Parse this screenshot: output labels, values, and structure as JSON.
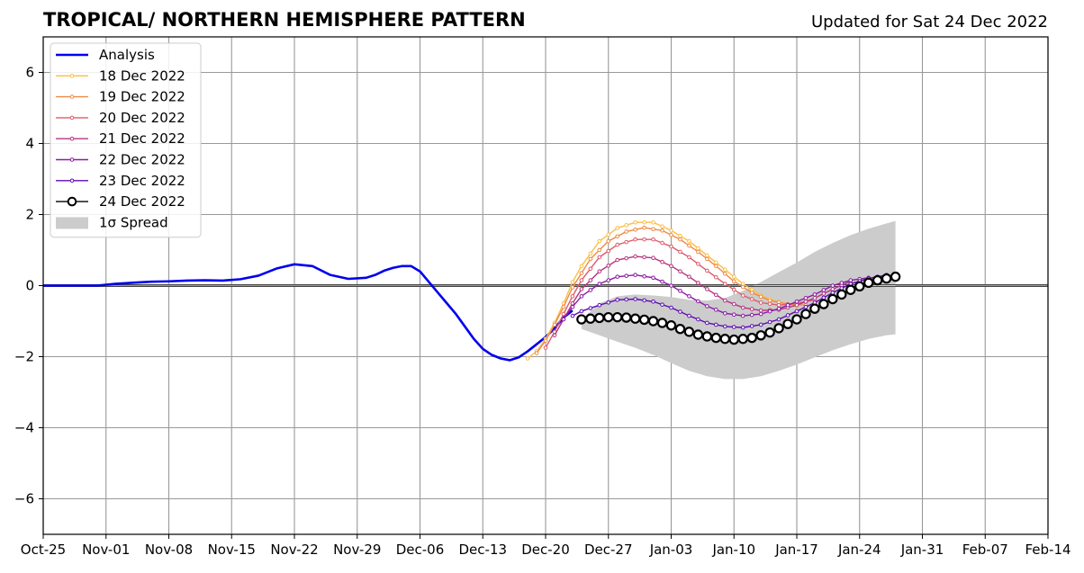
{
  "chart_data": {
    "type": "line",
    "title": "TROPICAL/ NORTHERN HEMISPHERE PATTERN",
    "subtitle": "Updated for Sat 24 Dec 2022",
    "xlabel": "",
    "ylabel": "",
    "x_range": [
      "2022-10-25",
      "2023-02-14"
    ],
    "ylim": [
      -7,
      7
    ],
    "grid": true,
    "zero_line": true,
    "legend_placement": "top-left",
    "x_ticks": [
      {
        "date": "2022-10-25",
        "label": "Oct-25"
      },
      {
        "date": "2022-11-01",
        "label": "Nov-01"
      },
      {
        "date": "2022-11-08",
        "label": "Nov-08"
      },
      {
        "date": "2022-11-15",
        "label": "Nov-15"
      },
      {
        "date": "2022-11-22",
        "label": "Nov-22"
      },
      {
        "date": "2022-11-29",
        "label": "Nov-29"
      },
      {
        "date": "2022-12-06",
        "label": "Dec-06"
      },
      {
        "date": "2022-12-13",
        "label": "Dec-13"
      },
      {
        "date": "2022-12-20",
        "label": "Dec-20"
      },
      {
        "date": "2022-12-27",
        "label": "Dec-27"
      },
      {
        "date": "2023-01-03",
        "label": "Jan-03"
      },
      {
        "date": "2023-01-10",
        "label": "Jan-10"
      },
      {
        "date": "2023-01-17",
        "label": "Jan-17"
      },
      {
        "date": "2023-01-24",
        "label": "Jan-24"
      },
      {
        "date": "2023-01-31",
        "label": "Jan-31"
      },
      {
        "date": "2023-02-07",
        "label": "Feb-07"
      },
      {
        "date": "2023-02-14",
        "label": "Feb-14"
      }
    ],
    "y_ticks": [
      {
        "value": -6,
        "label": "−6"
      },
      {
        "value": -4,
        "label": "−4"
      },
      {
        "value": -2,
        "label": "−2"
      },
      {
        "value": 0,
        "label": "0"
      },
      {
        "value": 2,
        "label": "2"
      },
      {
        "value": 4,
        "label": "4"
      },
      {
        "value": 6,
        "label": "6"
      }
    ],
    "analysis": {
      "name": "Analysis",
      "color": "#0000ee",
      "points": [
        [
          "2022-10-25",
          0.0
        ],
        [
          "2022-10-27",
          0.0
        ],
        [
          "2022-10-29",
          0.0
        ],
        [
          "2022-10-31",
          0.0
        ],
        [
          "2022-11-02",
          0.05
        ],
        [
          "2022-11-04",
          0.08
        ],
        [
          "2022-11-06",
          0.11
        ],
        [
          "2022-11-08",
          0.12
        ],
        [
          "2022-11-10",
          0.14
        ],
        [
          "2022-11-12",
          0.15
        ],
        [
          "2022-11-14",
          0.14
        ],
        [
          "2022-11-16",
          0.18
        ],
        [
          "2022-11-18",
          0.28
        ],
        [
          "2022-11-20",
          0.48
        ],
        [
          "2022-11-22",
          0.6
        ],
        [
          "2022-11-24",
          0.55
        ],
        [
          "2022-11-26",
          0.3
        ],
        [
          "2022-11-28",
          0.19
        ],
        [
          "2022-11-30",
          0.22
        ],
        [
          "2022-12-01",
          0.3
        ],
        [
          "2022-12-02",
          0.42
        ],
        [
          "2022-12-03",
          0.5
        ],
        [
          "2022-12-04",
          0.55
        ],
        [
          "2022-12-05",
          0.55
        ],
        [
          "2022-12-06",
          0.4
        ],
        [
          "2022-12-07",
          0.1
        ],
        [
          "2022-12-08",
          -0.2
        ],
        [
          "2022-12-09",
          -0.5
        ],
        [
          "2022-12-10",
          -0.8
        ],
        [
          "2022-12-11",
          -1.15
        ],
        [
          "2022-12-12",
          -1.5
        ],
        [
          "2022-12-13",
          -1.78
        ],
        [
          "2022-12-14",
          -1.95
        ],
        [
          "2022-12-15",
          -2.05
        ],
        [
          "2022-12-16",
          -2.1
        ],
        [
          "2022-12-17",
          -2.02
        ],
        [
          "2022-12-18",
          -1.85
        ],
        [
          "2022-12-19",
          -1.65
        ],
        [
          "2022-12-20",
          -1.45
        ],
        [
          "2022-12-21",
          -1.2
        ],
        [
          "2022-12-22",
          -0.9
        ],
        [
          "2022-12-23",
          -0.7
        ]
      ]
    },
    "series": [
      {
        "name": "18 Dec 2022",
        "color": "#fbbf45",
        "start": "2022-12-18",
        "points": [
          [
            "2022-12-18",
            -2.05
          ],
          [
            "2022-12-19",
            -1.85
          ],
          [
            "2022-12-20",
            -1.5
          ],
          [
            "2022-12-21",
            -1.05
          ],
          [
            "2022-12-22",
            -0.5
          ],
          [
            "2022-12-23",
            0.1
          ],
          [
            "2022-12-24",
            0.55
          ],
          [
            "2022-12-26",
            1.25
          ],
          [
            "2022-12-28",
            1.62
          ],
          [
            "2022-12-30",
            1.78
          ],
          [
            "2023-01-01",
            1.78
          ],
          [
            "2023-01-03",
            1.55
          ],
          [
            "2023-01-05",
            1.25
          ],
          [
            "2023-01-07",
            0.85
          ],
          [
            "2023-01-09",
            0.45
          ],
          [
            "2023-01-11",
            0.05
          ],
          [
            "2023-01-13",
            -0.28
          ],
          [
            "2023-01-15",
            -0.47
          ],
          [
            "2023-01-17",
            -0.58
          ]
        ]
      },
      {
        "name": "19 Dec 2022",
        "color": "#ef8a47",
        "start": "2022-12-19",
        "points": [
          [
            "2022-12-19",
            -1.9
          ],
          [
            "2022-12-20",
            -1.55
          ],
          [
            "2022-12-21",
            -1.1
          ],
          [
            "2022-12-22",
            -0.6
          ],
          [
            "2022-12-23",
            -0.05
          ],
          [
            "2022-12-25",
            0.75
          ],
          [
            "2022-12-27",
            1.25
          ],
          [
            "2022-12-29",
            1.52
          ],
          [
            "2022-12-31",
            1.63
          ],
          [
            "2023-01-02",
            1.55
          ],
          [
            "2023-01-04",
            1.3
          ],
          [
            "2023-01-06",
            0.95
          ],
          [
            "2023-01-08",
            0.55
          ],
          [
            "2023-01-10",
            0.12
          ],
          [
            "2023-01-12",
            -0.2
          ],
          [
            "2023-01-14",
            -0.42
          ],
          [
            "2023-01-16",
            -0.52
          ],
          [
            "2023-01-18",
            -0.55
          ]
        ]
      },
      {
        "name": "20 Dec 2022",
        "color": "#dd5b6b",
        "start": "2022-12-20",
        "points": [
          [
            "2022-12-20",
            -1.75
          ],
          [
            "2022-12-21",
            -1.3
          ],
          [
            "2022-12-22",
            -0.8
          ],
          [
            "2022-12-23",
            -0.3
          ],
          [
            "2022-12-24",
            0.15
          ],
          [
            "2022-12-26",
            0.8
          ],
          [
            "2022-12-28",
            1.15
          ],
          [
            "2022-12-30",
            1.3
          ],
          [
            "2023-01-01",
            1.3
          ],
          [
            "2023-01-03",
            1.1
          ],
          [
            "2023-01-05",
            0.8
          ],
          [
            "2023-01-07",
            0.42
          ],
          [
            "2023-01-09",
            0.05
          ],
          [
            "2023-01-11",
            -0.28
          ],
          [
            "2023-01-13",
            -0.48
          ],
          [
            "2023-01-15",
            -0.55
          ],
          [
            "2023-01-17",
            -0.5
          ],
          [
            "2023-01-19",
            -0.4
          ]
        ]
      },
      {
        "name": "21 Dec 2022",
        "color": "#b5357f",
        "start": "2022-12-21",
        "points": [
          [
            "2022-12-21",
            -1.4
          ],
          [
            "2022-12-22",
            -0.95
          ],
          [
            "2022-12-23",
            -0.5
          ],
          [
            "2022-12-24",
            -0.1
          ],
          [
            "2022-12-26",
            0.4
          ],
          [
            "2022-12-28",
            0.72
          ],
          [
            "2022-12-30",
            0.82
          ],
          [
            "2023-01-01",
            0.78
          ],
          [
            "2023-01-03",
            0.55
          ],
          [
            "2023-01-05",
            0.25
          ],
          [
            "2023-01-07",
            -0.1
          ],
          [
            "2023-01-09",
            -0.42
          ],
          [
            "2023-01-11",
            -0.62
          ],
          [
            "2023-01-13",
            -0.7
          ],
          [
            "2023-01-15",
            -0.68
          ],
          [
            "2023-01-17",
            -0.55
          ],
          [
            "2023-01-19",
            -0.35
          ],
          [
            "2023-01-21",
            -0.1
          ],
          [
            "2023-01-23",
            0.12
          ]
        ]
      },
      {
        "name": "22 Dec 2022",
        "color": "#8a1aa3",
        "start": "2022-12-22",
        "points": [
          [
            "2022-12-22",
            -0.95
          ],
          [
            "2022-12-23",
            -0.6
          ],
          [
            "2022-12-24",
            -0.3
          ],
          [
            "2022-12-26",
            0.05
          ],
          [
            "2022-12-28",
            0.25
          ],
          [
            "2022-12-30",
            0.3
          ],
          [
            "2023-01-01",
            0.22
          ],
          [
            "2023-01-03",
            0.0
          ],
          [
            "2023-01-05",
            -0.3
          ],
          [
            "2023-01-07",
            -0.58
          ],
          [
            "2023-01-09",
            -0.78
          ],
          [
            "2023-01-11",
            -0.85
          ],
          [
            "2023-01-13",
            -0.8
          ],
          [
            "2023-01-15",
            -0.65
          ],
          [
            "2023-01-17",
            -0.45
          ],
          [
            "2023-01-19",
            -0.25
          ],
          [
            "2023-01-21",
            0.0
          ],
          [
            "2023-01-23",
            0.15
          ],
          [
            "2023-01-25",
            0.22
          ]
        ]
      },
      {
        "name": "23 Dec 2022",
        "color": "#5c0bb0",
        "start": "2022-12-23",
        "points": [
          [
            "2022-12-23",
            -0.85
          ],
          [
            "2022-12-24",
            -0.72
          ],
          [
            "2022-12-26",
            -0.55
          ],
          [
            "2022-12-28",
            -0.4
          ],
          [
            "2022-12-30",
            -0.38
          ],
          [
            "2023-01-01",
            -0.45
          ],
          [
            "2023-01-03",
            -0.62
          ],
          [
            "2023-01-05",
            -0.85
          ],
          [
            "2023-01-07",
            -1.05
          ],
          [
            "2023-01-09",
            -1.15
          ],
          [
            "2023-01-11",
            -1.18
          ],
          [
            "2023-01-13",
            -1.1
          ],
          [
            "2023-01-15",
            -0.95
          ],
          [
            "2023-01-17",
            -0.72
          ],
          [
            "2023-01-19",
            -0.48
          ],
          [
            "2023-01-21",
            -0.2
          ],
          [
            "2023-01-23",
            0.05
          ],
          [
            "2023-01-25",
            0.2
          ],
          [
            "2023-01-27",
            0.3
          ]
        ]
      },
      {
        "name": "24 Dec 2022",
        "color": "#000000",
        "start": "2022-12-24",
        "points": [
          [
            "2022-12-24",
            -0.95
          ],
          [
            "2022-12-25",
            -0.93
          ],
          [
            "2022-12-26",
            -0.91
          ],
          [
            "2022-12-27",
            -0.89
          ],
          [
            "2022-12-28",
            -0.89
          ],
          [
            "2022-12-29",
            -0.9
          ],
          [
            "2022-12-30",
            -0.93
          ],
          [
            "2022-12-31",
            -0.96
          ],
          [
            "2023-01-01",
            -1.0
          ],
          [
            "2023-01-02",
            -1.05
          ],
          [
            "2023-01-03",
            -1.12
          ],
          [
            "2023-01-04",
            -1.22
          ],
          [
            "2023-01-05",
            -1.3
          ],
          [
            "2023-01-06",
            -1.38
          ],
          [
            "2023-01-07",
            -1.43
          ],
          [
            "2023-01-08",
            -1.47
          ],
          [
            "2023-01-09",
            -1.5
          ],
          [
            "2023-01-10",
            -1.52
          ],
          [
            "2023-01-11",
            -1.5
          ],
          [
            "2023-01-12",
            -1.47
          ],
          [
            "2023-01-13",
            -1.4
          ],
          [
            "2023-01-14",
            -1.32
          ],
          [
            "2023-01-15",
            -1.2
          ],
          [
            "2023-01-16",
            -1.08
          ],
          [
            "2023-01-17",
            -0.95
          ],
          [
            "2023-01-18",
            -0.8
          ],
          [
            "2023-01-19",
            -0.65
          ],
          [
            "2023-01-20",
            -0.52
          ],
          [
            "2023-01-21",
            -0.38
          ],
          [
            "2023-01-22",
            -0.25
          ],
          [
            "2023-01-23",
            -0.12
          ],
          [
            "2023-01-24",
            -0.02
          ],
          [
            "2023-01-25",
            0.08
          ],
          [
            "2023-01-26",
            0.15
          ],
          [
            "2023-01-27",
            0.2
          ],
          [
            "2023-01-28",
            0.25
          ]
        ]
      }
    ],
    "spread": {
      "name": "1σ Spread",
      "color": "#cccccc",
      "upper": [
        [
          "2022-12-24",
          -0.95
        ],
        [
          "2022-12-26",
          -0.5
        ],
        [
          "2022-12-28",
          -0.3
        ],
        [
          "2022-12-30",
          -0.25
        ],
        [
          "2023-01-01",
          -0.28
        ],
        [
          "2023-01-03",
          -0.32
        ],
        [
          "2023-01-05",
          -0.4
        ],
        [
          "2023-01-07",
          -0.42
        ],
        [
          "2023-01-09",
          -0.35
        ],
        [
          "2023-01-11",
          -0.15
        ],
        [
          "2023-01-13",
          0.1
        ],
        [
          "2023-01-15",
          0.38
        ],
        [
          "2023-01-17",
          0.65
        ],
        [
          "2023-01-19",
          0.95
        ],
        [
          "2023-01-21",
          1.2
        ],
        [
          "2023-01-23",
          1.42
        ],
        [
          "2023-01-25",
          1.6
        ],
        [
          "2023-01-27",
          1.75
        ],
        [
          "2023-01-28",
          1.82
        ]
      ],
      "lower": [
        [
          "2022-12-24",
          -1.22
        ],
        [
          "2022-12-26",
          -1.4
        ],
        [
          "2022-12-28",
          -1.58
        ],
        [
          "2022-12-30",
          -1.75
        ],
        [
          "2023-01-01",
          -1.95
        ],
        [
          "2023-01-03",
          -2.18
        ],
        [
          "2023-01-05",
          -2.4
        ],
        [
          "2023-01-07",
          -2.55
        ],
        [
          "2023-01-09",
          -2.63
        ],
        [
          "2023-01-11",
          -2.63
        ],
        [
          "2023-01-13",
          -2.55
        ],
        [
          "2023-01-15",
          -2.4
        ],
        [
          "2023-01-17",
          -2.22
        ],
        [
          "2023-01-19",
          -2.02
        ],
        [
          "2023-01-21",
          -1.82
        ],
        [
          "2023-01-23",
          -1.65
        ],
        [
          "2023-01-25",
          -1.5
        ],
        [
          "2023-01-27",
          -1.4
        ],
        [
          "2023-01-28",
          -1.37
        ]
      ]
    }
  }
}
